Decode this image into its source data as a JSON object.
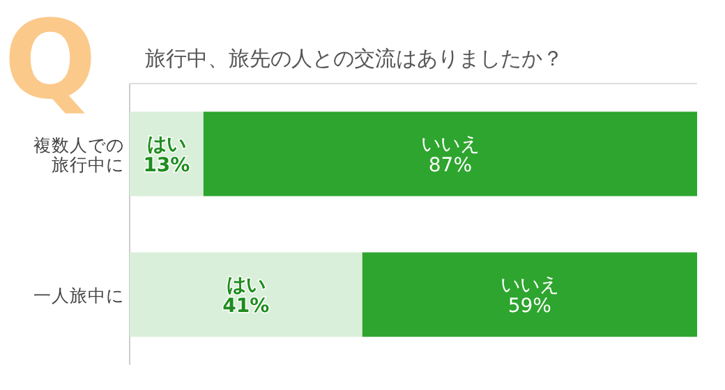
{
  "chart_data": {
    "type": "bar",
    "title": "旅行中、旅先の人との交流はありましたか？",
    "annotations": [
      "Q"
    ],
    "orientation": "horizontal",
    "stacked": true,
    "categories": [
      "複数人での旅行中に",
      "一人旅中に"
    ],
    "series": [
      {
        "name": "はい",
        "color": "#d9efd9",
        "values": [
          13,
          41
        ],
        "value_labels": [
          "13%",
          "41%"
        ]
      },
      {
        "name": "いいえ",
        "color": "#2ea52e",
        "values": [
          87,
          59
        ],
        "value_labels": [
          "87%",
          "59%"
        ]
      }
    ]
  }
}
